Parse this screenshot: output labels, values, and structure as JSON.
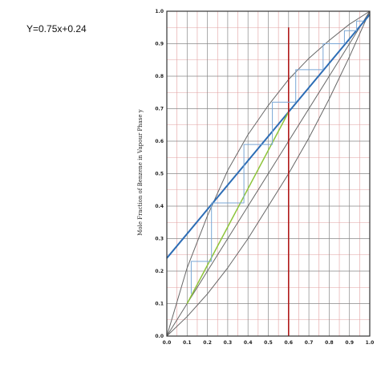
{
  "page": {
    "equation": "Y=0.75x+0.24"
  },
  "chart_data": {
    "type": "line",
    "title": "",
    "xlabel": "",
    "ylabel": "Mole Fraction of Benzene in Vapour Phase y",
    "xlim": [
      0,
      1
    ],
    "ylim": [
      0,
      1
    ],
    "xticks": [
      "0.0",
      "0.1",
      "0.2",
      "0.3",
      "0.4",
      "0.5",
      "0.6",
      "0.7",
      "0.8",
      "0.9",
      "1.0"
    ],
    "yticks": [
      "0.0",
      "0.1",
      "0.2",
      "0.3",
      "0.4",
      "0.5",
      "0.6",
      "0.7",
      "0.8",
      "0.9",
      "1.0"
    ],
    "minor_grid": true,
    "colors": {
      "grid_major": "#888888",
      "grid_minor": "#e2a0a0",
      "curve": "#666666",
      "operating_line": "#2d6db5",
      "stripping_line": "#8dc43a",
      "feed_line": "#b01b1b",
      "steps": "#7aa7d6",
      "axis": "#333333"
    },
    "series": [
      {
        "role": "equilibrium",
        "color_key": "curve",
        "x": [
          0,
          0.1,
          0.2,
          0.3,
          0.4,
          0.5,
          0.6,
          0.7,
          0.8,
          0.9,
          1.0
        ],
        "y": [
          0,
          0.21,
          0.37,
          0.51,
          0.62,
          0.71,
          0.79,
          0.855,
          0.91,
          0.96,
          1.0
        ]
      },
      {
        "role": "diagonal",
        "color_key": "curve",
        "x": [
          0,
          1
        ],
        "y": [
          0,
          1
        ]
      },
      {
        "role": "lower-curve",
        "color_key": "curve",
        "x": [
          0,
          0.1,
          0.2,
          0.3,
          0.4,
          0.5,
          0.6,
          0.7,
          0.8,
          0.9,
          1.0
        ],
        "y": [
          0,
          0.06,
          0.13,
          0.21,
          0.3,
          0.4,
          0.5,
          0.61,
          0.73,
          0.86,
          1.0
        ]
      },
      {
        "role": "operating-line",
        "color_key": "operating_line",
        "x": [
          0,
          1
        ],
        "y": [
          0.24,
          0.99
        ]
      },
      {
        "role": "stripping-line",
        "color_key": "stripping_line",
        "x": [
          0.1,
          0.6
        ],
        "y": [
          0.1,
          0.69
        ]
      },
      {
        "role": "feed-line",
        "color_key": "feed_line",
        "x": [
          0.6,
          0.6
        ],
        "y": [
          0,
          0.95
        ]
      },
      {
        "role": "stages",
        "color_key": "steps",
        "x": [
          0.97,
          0.935,
          0.935,
          0.875,
          0.875,
          0.77,
          0.77,
          0.635,
          0.635,
          0.52,
          0.52,
          0.38,
          0.38,
          0.22,
          0.22,
          0.12,
          0.12
        ],
        "y": [
          0.97,
          0.97,
          0.94,
          0.94,
          0.9,
          0.9,
          0.82,
          0.82,
          0.72,
          0.72,
          0.59,
          0.59,
          0.41,
          0.41,
          0.23,
          0.23,
          0.13
        ]
      }
    ]
  }
}
